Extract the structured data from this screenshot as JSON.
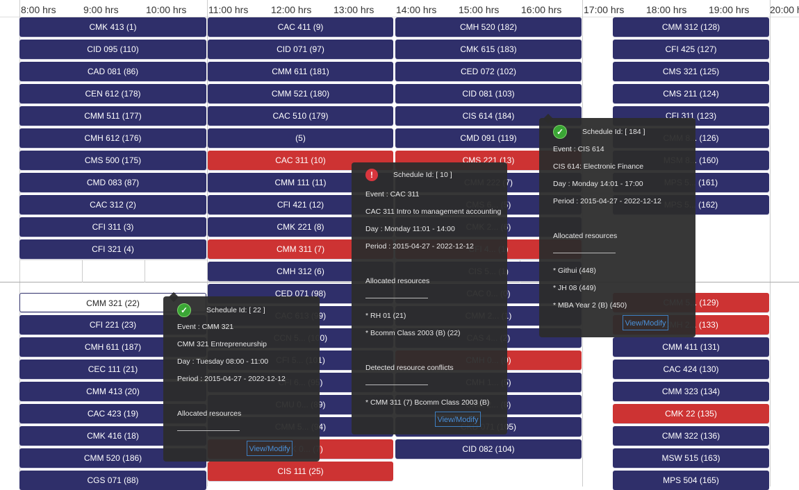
{
  "hours": [
    "8:00 hrs",
    "9:00 hrs",
    "10:00 hrs",
    "11:00 hrs",
    "12:00 hrs",
    "13:00 hrs",
    "14:00 hrs",
    "15:00 hrs",
    "16:00 hrs",
    "17:00 hrs",
    "18:00 hrs",
    "19:00 hrs",
    "20:00 hrs"
  ],
  "events": {
    "col1": [
      "CMK 413 (1)",
      "CID 095 (110)",
      "CAD 081 (86)",
      "CEN 612 (178)",
      "CMM 511 (177)",
      "CMH 612 (176)",
      "CMS 500 (175)",
      "CMD 083 (87)",
      "CAC 312 (2)",
      "CFI 311 (3)",
      "CFI 321 (4)"
    ],
    "col1b": [
      "CMM 321 (22)",
      "CFI 221 (23)",
      "CMH 611 (187)",
      "CEC 111 (21)",
      "CMM 413 (20)",
      "CAC 423 (19)",
      "CMK 416 (18)",
      "CMM 520 (186)",
      "CGS 071 (88)"
    ],
    "col2": [
      "CAC 411 (9)",
      "CID 071 (97)",
      "CMM 611 (181)",
      "CMM 521 (180)",
      "CAC 510 (179)",
      "(5)",
      "CAC 311 (10)",
      "CMM 111 (11)",
      "CFI 421 (12)",
      "CMK 221 (8)",
      "CMM 311 (7)",
      "CMH 312 (6)",
      "CED 071 (98)",
      "CAC 613 (99)",
      "CCN 5... (100)",
      "CFI 5... (101)",
      "CFI 6... (95)",
      "CMU 0... (89)",
      "CMM 5... (94)",
      "CMK 0... (7)",
      "CIS 111 (25)"
    ],
    "col3": [
      "CMH 520 (182)",
      "CMK 615 (183)",
      "CED 072 (102)",
      "CID 081 (103)",
      "CIS 614 (184)",
      "CMD 091 (119)",
      "CMS 221 (13)",
      "CMM 222 (7)",
      "CMS 6... (5)",
      "CMK 2... (6)",
      "CFI 4... (1)",
      "CIS 5... (1)",
      "CAC 0... (0)",
      "CMM 2... (1)",
      "CAS 4... (2)",
      "CMH 0... (0)",
      "CMH 1... (5)",
      "CMK 2... (8)",
      "CKD 071 (105)",
      "CID 082 (104)"
    ],
    "col4": [
      "CMM 312 (128)",
      "CFI 425 (127)",
      "CMS 321 (125)",
      "CMS 211 (124)",
      "CFI 311 (123)",
      "CMM 8... (126)",
      "MSM 8... (160)",
      "MPS 5... (161)",
      "MPS 5... (162)"
    ],
    "col4b": [
      "CMM 5... (129)",
      "CMH 2... (133)",
      "CMM 411 (131)",
      "CAC 424 (130)",
      "CMM 323 (134)",
      "CMK 22 (135)",
      "CMM 322 (136)",
      "MSW 515 (163)",
      "MPS 504 (165)"
    ]
  },
  "tooltips": {
    "t22": {
      "status": "ok",
      "id": "Schedule Id: [ 22 ]",
      "event": "Event : CMM 321",
      "desc": "CMM 321 Entrepreneurship",
      "day": "Day : Tuesday 08:00 - 11:00",
      "period": "Period : 2015-04-27 - 2022-12-12",
      "alloc_title": "Allocated resources",
      "button": "View/Modify"
    },
    "t10": {
      "status": "error",
      "id": "Schedule Id: [ 10 ]",
      "event": "Event : CAC 311",
      "desc": "CAC 311 Intro to management accounting",
      "day": "Day : Monday 11:01 - 14:00",
      "period": "Period : 2015-04-27 - 2022-12-12",
      "alloc_title": "Allocated resources",
      "alloc": [
        "*   RH 01 (21)",
        "*   Bcomm Class 2003 (B) (22)"
      ],
      "conflict_title": "Detected resource conflicts",
      "conflicts": [
        "*   CMM 311 (7)    Bcomm Class 2003 (B)"
      ],
      "button": "View/Modify"
    },
    "t184": {
      "status": "ok",
      "id": "Schedule Id: [ 184 ]",
      "event": "Event : CIS 614",
      "desc": "CIS 614: Electronic Finance",
      "day": "Day : Monday 14:01 - 17:00",
      "period": "Period : 2015-04-27 - 2022-12-12",
      "alloc_title": "Allocated resources",
      "alloc": [
        "*   Githui (448)",
        "*   JH 08 (449)",
        "*   MBA Year 2 (B) (450)"
      ],
      "button": "View/Modify"
    }
  },
  "colors": {
    "event": "#2f2f6a",
    "conflict": "#cd3333",
    "tooltip": "#2c2c2c",
    "link": "#4a90d9"
  }
}
